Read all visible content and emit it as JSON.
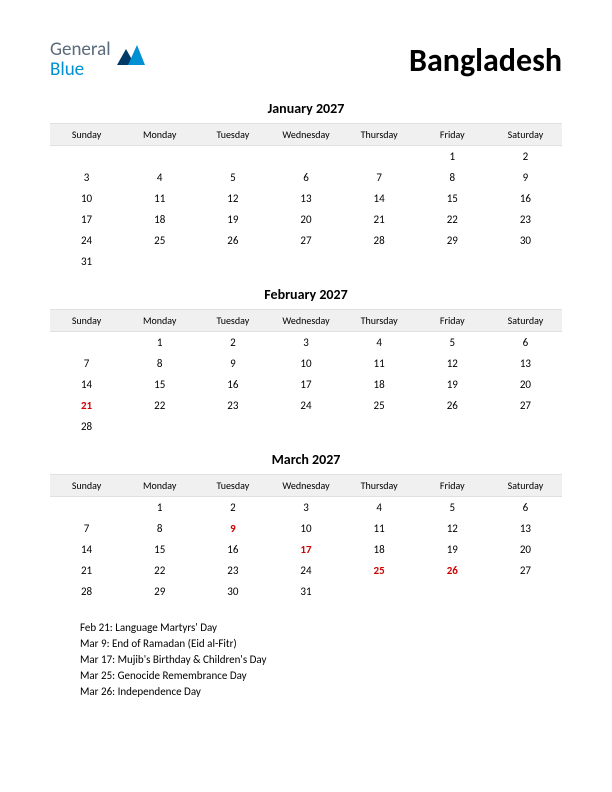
{
  "logo": {
    "general": "General",
    "blue": "Blue",
    "icon_colors": {
      "dark": "#003a66",
      "light": "#0090d4"
    }
  },
  "country": "Bangladesh",
  "day_headers": [
    "Sunday",
    "Monday",
    "Tuesday",
    "Wednesday",
    "Thursday",
    "Friday",
    "Saturday"
  ],
  "months": [
    {
      "title": "January 2027",
      "weeks": [
        [
          "",
          "",
          "",
          "",
          "",
          "1",
          "2"
        ],
        [
          "3",
          "4",
          "5",
          "6",
          "7",
          "8",
          "9"
        ],
        [
          "10",
          "11",
          "12",
          "13",
          "14",
          "15",
          "16"
        ],
        [
          "17",
          "18",
          "19",
          "20",
          "21",
          "22",
          "23"
        ],
        [
          "24",
          "25",
          "26",
          "27",
          "28",
          "29",
          "30"
        ],
        [
          "31",
          "",
          "",
          "",
          "",
          "",
          ""
        ]
      ],
      "holidays": []
    },
    {
      "title": "February 2027",
      "weeks": [
        [
          "",
          "1",
          "2",
          "3",
          "4",
          "5",
          "6"
        ],
        [
          "7",
          "8",
          "9",
          "10",
          "11",
          "12",
          "13"
        ],
        [
          "14",
          "15",
          "16",
          "17",
          "18",
          "19",
          "20"
        ],
        [
          "21",
          "22",
          "23",
          "24",
          "25",
          "26",
          "27"
        ],
        [
          "28",
          "",
          "",
          "",
          "",
          "",
          ""
        ]
      ],
      "holidays": [
        "21"
      ]
    },
    {
      "title": "March 2027",
      "weeks": [
        [
          "",
          "1",
          "2",
          "3",
          "4",
          "5",
          "6"
        ],
        [
          "7",
          "8",
          "9",
          "10",
          "11",
          "12",
          "13"
        ],
        [
          "14",
          "15",
          "16",
          "17",
          "18",
          "19",
          "20"
        ],
        [
          "21",
          "22",
          "23",
          "24",
          "25",
          "26",
          "27"
        ],
        [
          "28",
          "29",
          "30",
          "31",
          "",
          "",
          ""
        ]
      ],
      "holidays": [
        "9",
        "17",
        "25",
        "26"
      ]
    }
  ],
  "holiday_lines": [
    "Feb 21: Language Martyrs' Day",
    "Mar 9: End of Ramadan (Eid al-Fitr)",
    "Mar 17: Mujib's Birthday & Children's Day",
    "Mar 25: Genocide Remembrance Day",
    "Mar 26: Independence Day"
  ],
  "styling": {
    "background_color": "#ffffff",
    "header_row_bg": "#f0f0f0",
    "text_color": "#000000",
    "holiday_color": "#d00000",
    "country_fontsize": 32,
    "month_title_fontsize": 14,
    "dayheader_fontsize": 10,
    "cell_fontsize": 11,
    "holiday_line_fontsize": 11
  }
}
